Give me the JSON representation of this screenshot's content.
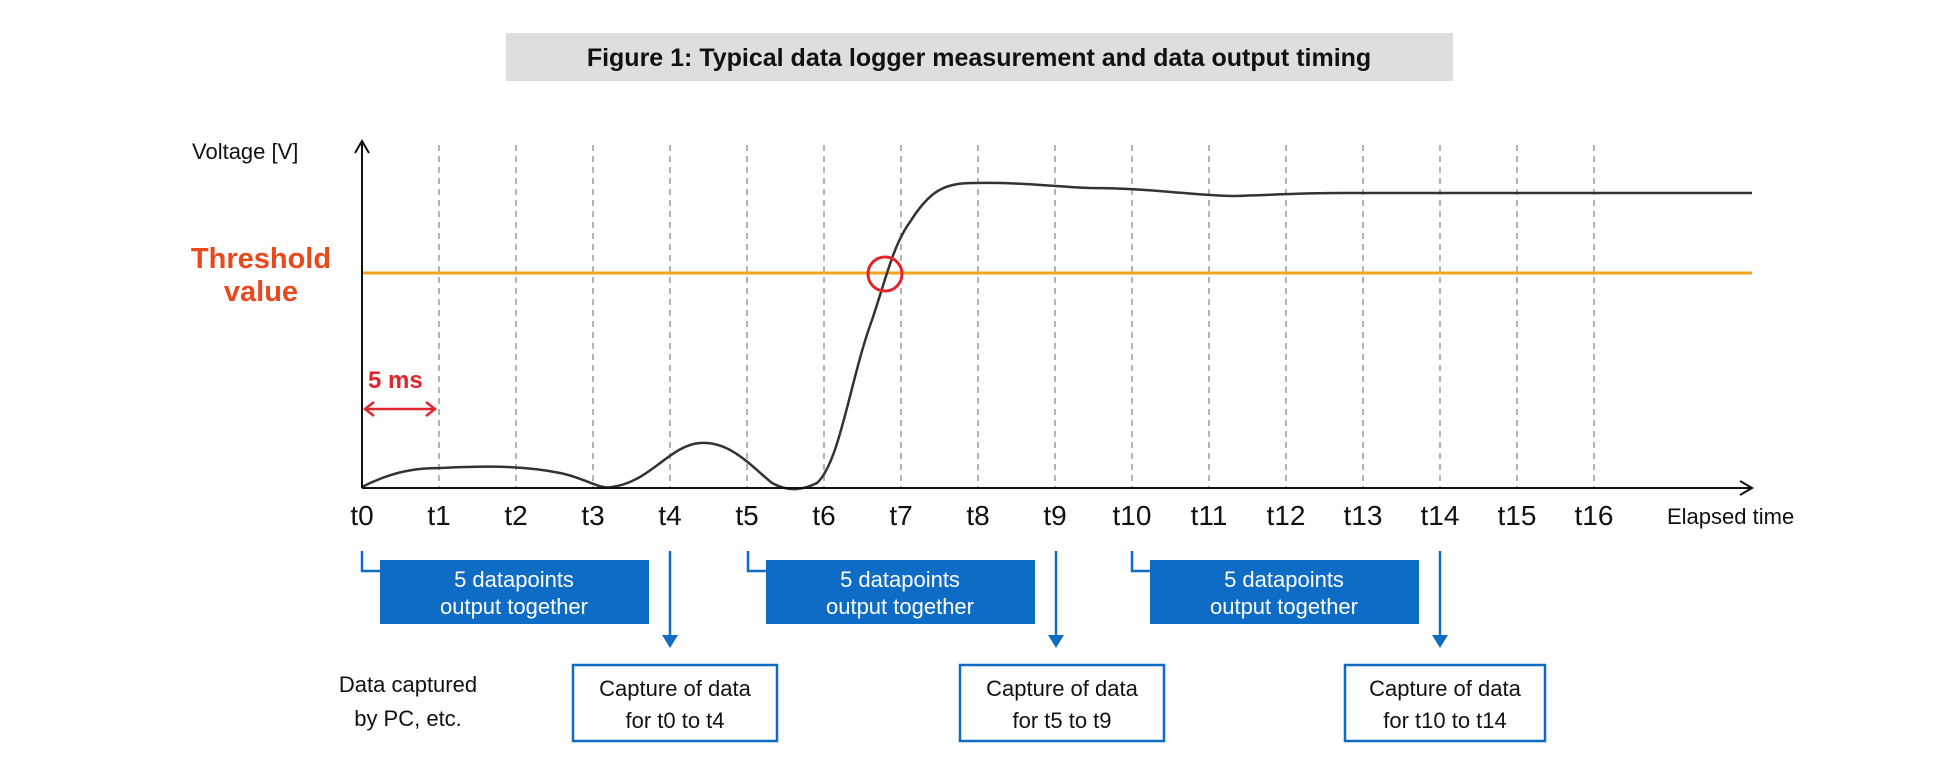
{
  "title": "Figure 1: Typical data logger measurement and data output timing",
  "y_axis_label": "Voltage [V]",
  "x_axis_label": "Elapsed time",
  "threshold_label": [
    "Threshold",
    "value"
  ],
  "interval_label": "5 ms",
  "time_ticks": [
    "t0",
    "t1",
    "t2",
    "t3",
    "t4",
    "t5",
    "t6",
    "t7",
    "t8",
    "t9",
    "t10",
    "t11",
    "t12",
    "t13",
    "t14",
    "t15",
    "t16"
  ],
  "pc_label": [
    "Data captured",
    "by PC, etc."
  ],
  "output_groups": [
    {
      "box_lines": [
        "5 datapoints",
        "output together"
      ],
      "capture_lines": [
        "Capture of data",
        "for t0 to t4"
      ]
    },
    {
      "box_lines": [
        "5 datapoints",
        "output together"
      ],
      "capture_lines": [
        "Capture of data",
        "for t5 to t9"
      ]
    },
    {
      "box_lines": [
        "5 datapoints",
        "output together"
      ],
      "capture_lines": [
        "Capture of data",
        "for t10 to t14"
      ]
    }
  ],
  "colors": {
    "threshold_line": "#f5a21c",
    "threshold_text": "#e8491d",
    "interval_marker": "#e0262c",
    "crossing_circle": "#e0262c",
    "output_box": "#0e6cc4",
    "capture_border": "#0e6cc4",
    "title_band": "#dedede",
    "signal": "#333333",
    "gridline": "#9a9a9a"
  }
}
